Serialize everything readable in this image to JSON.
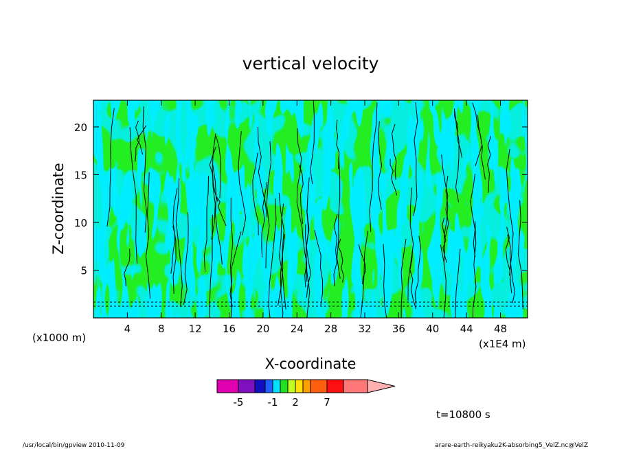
{
  "chart_data": {
    "type": "heatmap",
    "title": "vertical velocity",
    "xlabel": "X-coordinate",
    "ylabel": "Z-coordinate",
    "x_unit": "(x1E4 m)",
    "y_unit": "(x1000 m)",
    "xlim": [
      0,
      51.2
    ],
    "ylim": [
      0,
      22.8
    ],
    "x_ticks": [
      4,
      8,
      12,
      16,
      20,
      24,
      28,
      32,
      36,
      40,
      44,
      48
    ],
    "y_ticks": [
      5,
      10,
      15,
      20
    ],
    "colorbar": {
      "levels": [
        -7,
        -5,
        -3,
        -2,
        -1,
        0,
        1,
        2,
        3,
        5,
        7,
        10
      ],
      "tick_labels": [
        "-5",
        "-1",
        "2",
        "7"
      ],
      "colors": [
        "#e000b0",
        "#8010c0",
        "#1010c0",
        "#2060ff",
        "#00e0ff",
        "#20e020",
        "#c0ff20",
        "#ffe000",
        "#ffa000",
        "#ff6010",
        "#ff1010",
        "#ff7878",
        "#ffb0b0"
      ]
    },
    "colors": {
      "negative_fill": "#00eeff",
      "positive_fill": "#22ee22",
      "contour": "#000000"
    },
    "time_label": "t=10800 s"
  },
  "footer": {
    "left": "/usr/local/bin/gpview  2010-11-09",
    "right": "arare-earth-reikyaku2K-absorbing5_VelZ.nc@VelZ"
  }
}
